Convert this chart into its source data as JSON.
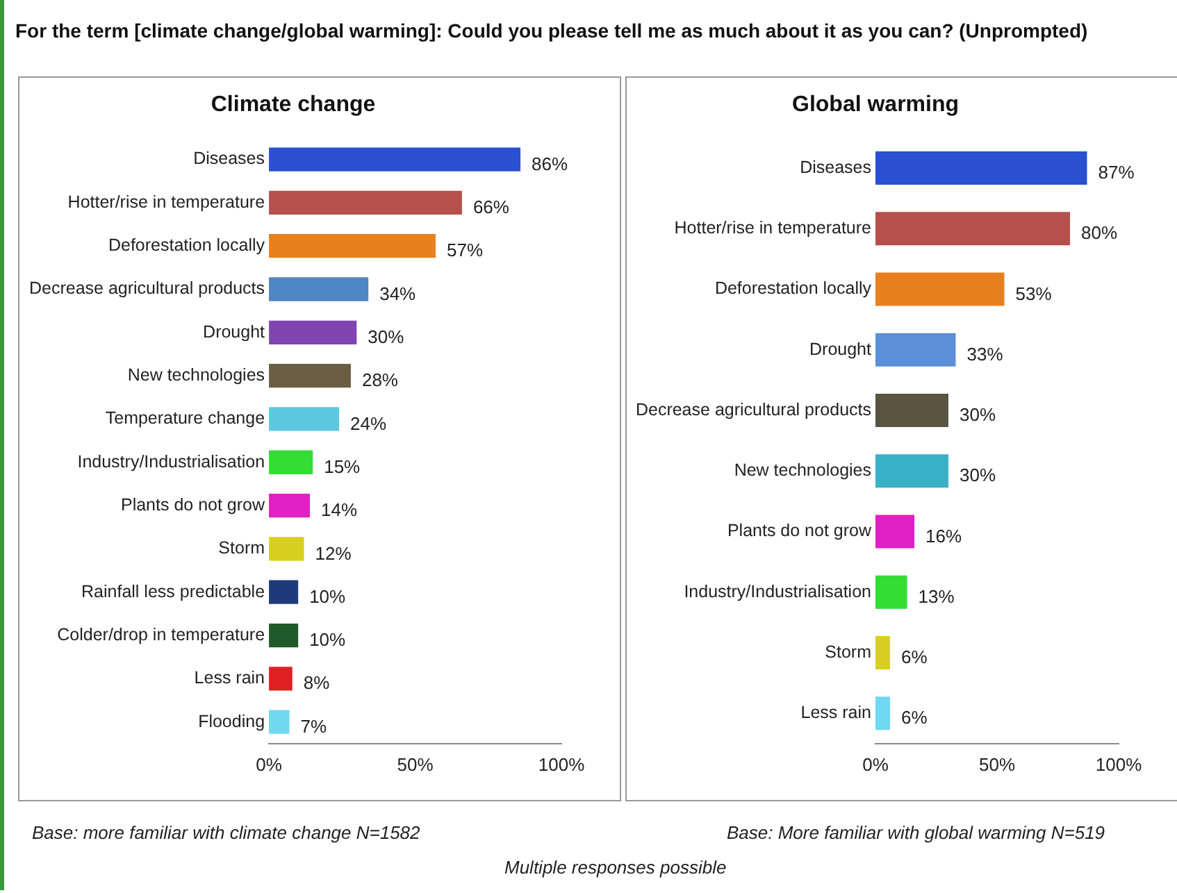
{
  "chart_data": [
    {
      "type": "bar",
      "orientation": "horizontal",
      "title": "Climate change",
      "annotations": [
        "For the term [climate change/global warming]: Could you please tell me as much about it as you can? (Unprompted)",
        "Base: more familiar with climate change N=1582",
        "Multiple responses possible"
      ],
      "categories": [
        "Diseases",
        "Hotter/rise in temperature",
        "Deforestation locally",
        "Decrease agricultural products",
        "Drought",
        "New technologies",
        "Temperature change",
        "Industry/Industrialisation",
        "Plants do not grow",
        "Storm",
        "Rainfall less predictable",
        "Colder/drop in temperature",
        "Less rain",
        "Flooding"
      ],
      "values": [
        86,
        66,
        57,
        34,
        30,
        28,
        24,
        15,
        14,
        12,
        10,
        10,
        8,
        7
      ],
      "value_labels": [
        "86%",
        "66%",
        "57%",
        "34%",
        "30%",
        "28%",
        "24%",
        "15%",
        "14%",
        "12%",
        "10%",
        "10%",
        "8%",
        "7%"
      ],
      "colors": [
        "#2a4fd0",
        "#b5504c",
        "#e8801e",
        "#4f86c6",
        "#8045b0",
        "#6b5e45",
        "#5bc8e0",
        "#33dd33",
        "#e020c0",
        "#d8d020",
        "#1f3a7a",
        "#1f5a2a",
        "#e02020",
        "#70d8f0"
      ],
      "xlim": [
        0,
        100
      ],
      "xticks": [
        {
          "value": 0,
          "label": "0%"
        },
        {
          "value": 50,
          "label": "50%"
        },
        {
          "value": 100,
          "label": "100%"
        }
      ],
      "grid": false,
      "legend": false
    },
    {
      "type": "bar",
      "orientation": "horizontal",
      "title": "Global warming",
      "annotations": [
        "Base: More familiar with global warming N=519"
      ],
      "categories": [
        "Diseases",
        "Hotter/rise in temperature",
        "Deforestation locally",
        "Drought",
        "Decrease agricultural products",
        "New technologies",
        "Plants do not grow",
        "Industry/Industrialisation",
        "Storm",
        "Less rain"
      ],
      "values": [
        87,
        80,
        53,
        33,
        30,
        30,
        16,
        13,
        6,
        6
      ],
      "value_labels": [
        "87%",
        "80%",
        "53%",
        "33%",
        "30%",
        "30%",
        "16%",
        "13%",
        "6%",
        "6%"
      ],
      "colors": [
        "#2a4fd0",
        "#b5504c",
        "#e8801e",
        "#5b8fd8",
        "#5a5540",
        "#3ab0c8",
        "#e020c0",
        "#33dd33",
        "#d8d020",
        "#70d8f0"
      ],
      "xlim": [
        0,
        100
      ],
      "xticks": [
        {
          "value": 0,
          "label": "0%"
        },
        {
          "value": 50,
          "label": "50%"
        },
        {
          "value": 100,
          "label": "100%"
        }
      ],
      "grid": false,
      "legend": false
    }
  ]
}
